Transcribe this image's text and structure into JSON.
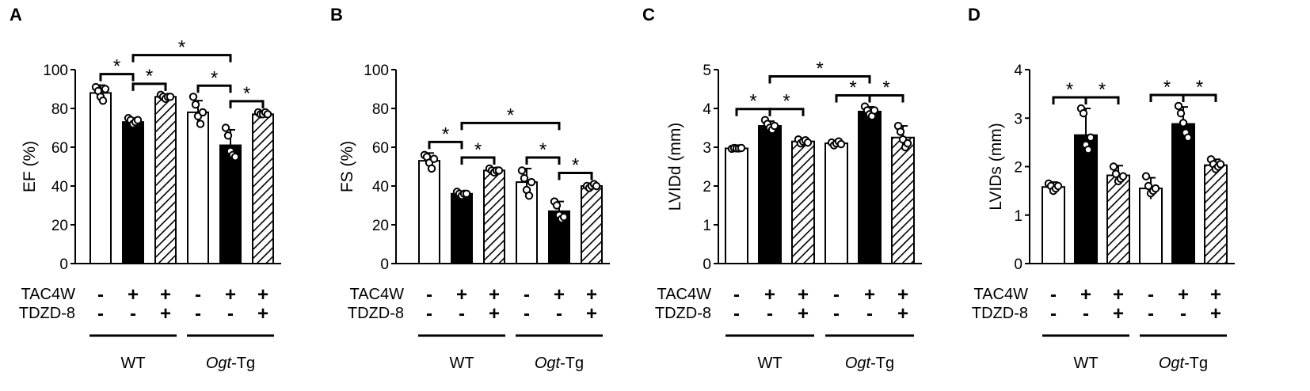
{
  "figure": {
    "row_labels": [
      "TAC4W",
      "TDZD-8"
    ]
  },
  "chart_data": [
    {
      "panel": "A",
      "type": "bar",
      "ylabel": "EF (%)",
      "ylim": [
        0,
        100
      ],
      "yticks": [
        0,
        20,
        40,
        60,
        80,
        100
      ],
      "tick_labels": [
        "0",
        "20",
        "40",
        "60",
        "80",
        "100"
      ],
      "categories": [
        "WT -/-",
        "WT +/-",
        "WT +/+",
        "Ogt-Tg -/-",
        "Ogt-Tg +/-",
        "Ogt-Tg +/+"
      ],
      "tac4w": [
        "-",
        "+",
        "+",
        "-",
        "+",
        "+"
      ],
      "tdzd8": [
        "-",
        "-",
        "+",
        "-",
        "-",
        "+"
      ],
      "fills": [
        "white",
        "black",
        "hatch",
        "white",
        "black",
        "hatch"
      ],
      "values": [
        88,
        73,
        86,
        78,
        61,
        77
      ],
      "errors": [
        4,
        2,
        1,
        6,
        8,
        1
      ],
      "points": [
        [
          91,
          89,
          86,
          84,
          90
        ],
        [
          75,
          74,
          72,
          73,
          74
        ],
        [
          87,
          86,
          85,
          86,
          86
        ],
        [
          86,
          82,
          76,
          72,
          78
        ],
        [
          70,
          66,
          58,
          56,
          55
        ],
        [
          78,
          77,
          77,
          78,
          77
        ]
      ],
      "significance": [
        [
          0,
          1,
          1
        ],
        [
          1,
          2,
          1
        ],
        [
          3,
          4,
          1
        ],
        [
          4,
          5,
          1
        ],
        [
          1,
          4,
          2
        ]
      ],
      "sig_label": "*",
      "groups": [
        {
          "name": "WT",
          "suffix": ""
        },
        {
          "name": "Ogt",
          "suffix": "-Tg"
        }
      ]
    },
    {
      "panel": "B",
      "type": "bar",
      "ylabel": "FS (%)",
      "ylim": [
        0,
        100
      ],
      "yticks": [
        0,
        20,
        40,
        60,
        80,
        100
      ],
      "tick_labels": [
        "0",
        "20",
        "40",
        "60",
        "80",
        "100"
      ],
      "categories": [
        "WT -/-",
        "WT +/-",
        "WT +/+",
        "Ogt-Tg -/-",
        "Ogt-Tg +/-",
        "Ogt-Tg +/+"
      ],
      "tac4w": [
        "-",
        "+",
        "+",
        "-",
        "+",
        "+"
      ],
      "tdzd8": [
        "-",
        "-",
        "+",
        "-",
        "-",
        "+"
      ],
      "fills": [
        "white",
        "black",
        "hatch",
        "white",
        "black",
        "hatch"
      ],
      "values": [
        53,
        36,
        48,
        42,
        27,
        40
      ],
      "errors": [
        4,
        1,
        1,
        7,
        5,
        1
      ],
      "points": [
        [
          56,
          55,
          52,
          49,
          54
        ],
        [
          37,
          36,
          35,
          36,
          36
        ],
        [
          49,
          48,
          47,
          48,
          48
        ],
        [
          48,
          44,
          38,
          35,
          42
        ],
        [
          32,
          30,
          25,
          23,
          24
        ],
        [
          40,
          39,
          40,
          41,
          40
        ]
      ],
      "significance": [
        [
          0,
          1,
          1
        ],
        [
          1,
          2,
          1
        ],
        [
          3,
          4,
          1
        ],
        [
          4,
          5,
          1
        ],
        [
          1,
          4,
          2
        ]
      ],
      "sig_label": "*",
      "groups": [
        {
          "name": "WT",
          "suffix": ""
        },
        {
          "name": "Ogt",
          "suffix": "-Tg"
        }
      ]
    },
    {
      "panel": "C",
      "type": "bar",
      "ylabel": "LVIDd (mm)",
      "ylim": [
        0,
        5
      ],
      "yticks": [
        0,
        1,
        2,
        3,
        4,
        5
      ],
      "tick_labels": [
        "0",
        "1",
        "2",
        "3",
        "4",
        "5"
      ],
      "categories": [
        "WT -/-",
        "WT +/-",
        "WT +/+",
        "Ogt-Tg -/-",
        "Ogt-Tg +/-",
        "Ogt-Tg +/+"
      ],
      "tac4w": [
        "-",
        "+",
        "+",
        "-",
        "+",
        "+"
      ],
      "tdzd8": [
        "-",
        "-",
        "+",
        "-",
        "-",
        "+"
      ],
      "fills": [
        "white",
        "black",
        "hatch",
        "white",
        "black",
        "hatch"
      ],
      "values": [
        2.97,
        3.55,
        3.15,
        3.1,
        3.92,
        3.25
      ],
      "errors": [
        0.04,
        0.12,
        0.08,
        0.07,
        0.12,
        0.3
      ],
      "points": [
        [
          2.96,
          2.98,
          2.97,
          2.97,
          2.98
        ],
        [
          3.7,
          3.6,
          3.5,
          3.45,
          3.55
        ],
        [
          3.2,
          3.1,
          3.15,
          3.18,
          3.12
        ],
        [
          3.12,
          3.05,
          3.1,
          3.15,
          3.08
        ],
        [
          4.05,
          3.95,
          3.85,
          3.8,
          3.95
        ],
        [
          3.55,
          3.4,
          3.2,
          3.0,
          3.1
        ]
      ],
      "significance": [
        [
          0,
          1,
          1
        ],
        [
          1,
          2,
          1
        ],
        [
          3,
          4,
          1
        ],
        [
          4,
          5,
          1
        ],
        [
          1,
          4,
          2
        ]
      ],
      "sig_label": "*",
      "groups": [
        {
          "name": "WT",
          "suffix": ""
        },
        {
          "name": "Ogt",
          "suffix": "-Tg"
        }
      ]
    },
    {
      "panel": "D",
      "type": "bar",
      "ylabel": "LVIDs (mm)",
      "ylim": [
        0,
        4
      ],
      "yticks": [
        0,
        1,
        2,
        3,
        4
      ],
      "tick_labels": [
        "0",
        "1",
        "2",
        "3",
        "4"
      ],
      "categories": [
        "WT -/-",
        "WT +/-",
        "WT +/+",
        "Ogt-Tg -/-",
        "Ogt-Tg +/-",
        "Ogt-Tg +/+"
      ],
      "tac4w": [
        "-",
        "+",
        "+",
        "-",
        "+",
        "+"
      ],
      "tdzd8": [
        "-",
        "-",
        "+",
        "-",
        "-",
        "+"
      ],
      "fills": [
        "white",
        "black",
        "hatch",
        "white",
        "black",
        "hatch"
      ],
      "values": [
        1.58,
        2.65,
        1.82,
        1.55,
        2.88,
        2.03
      ],
      "errors": [
        0.1,
        0.55,
        0.2,
        0.22,
        0.35,
        0.12
      ],
      "points": [
        [
          1.65,
          1.6,
          1.5,
          1.55,
          1.6
        ],
        [
          3.2,
          3.1,
          2.45,
          2.35,
          2.6
        ],
        [
          2.0,
          1.85,
          1.7,
          1.75,
          1.8
        ],
        [
          1.8,
          1.6,
          1.45,
          1.5,
          1.55
        ],
        [
          3.25,
          3.1,
          2.9,
          2.7,
          2.6
        ],
        [
          2.15,
          2.05,
          1.95,
          2.0,
          2.05
        ]
      ],
      "significance": [
        [
          0,
          1,
          1
        ],
        [
          1,
          2,
          1
        ],
        [
          3,
          4,
          1
        ],
        [
          4,
          5,
          1
        ]
      ],
      "sig_label": "*",
      "groups": [
        {
          "name": "WT",
          "suffix": ""
        },
        {
          "name": "Ogt",
          "suffix": "-Tg"
        }
      ]
    }
  ]
}
